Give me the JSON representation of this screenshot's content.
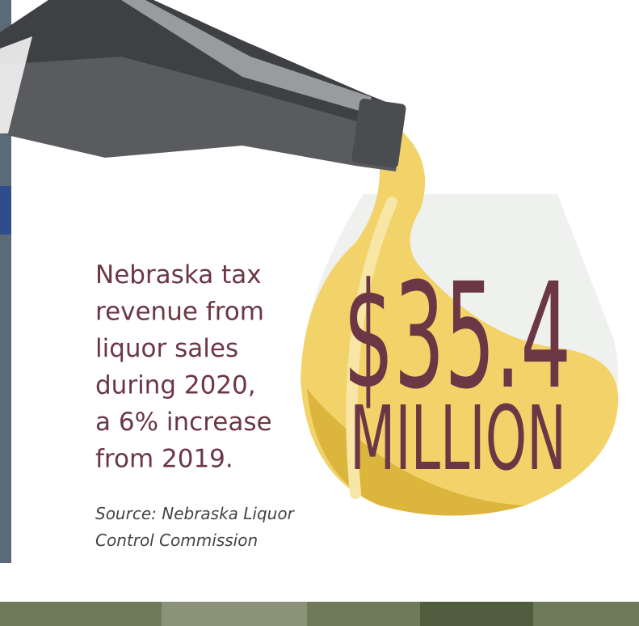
{
  "description": {
    "lines": [
      "Nebraska tax",
      "revenue from",
      "liquor sales",
      "during 2020,",
      "a 6% increase",
      "from 2019."
    ]
  },
  "figure": {
    "amount": "$35.4",
    "unit": "MILLION"
  },
  "source": {
    "lines": [
      "Source: Nebraska Liquor",
      "Control Commission"
    ]
  }
}
